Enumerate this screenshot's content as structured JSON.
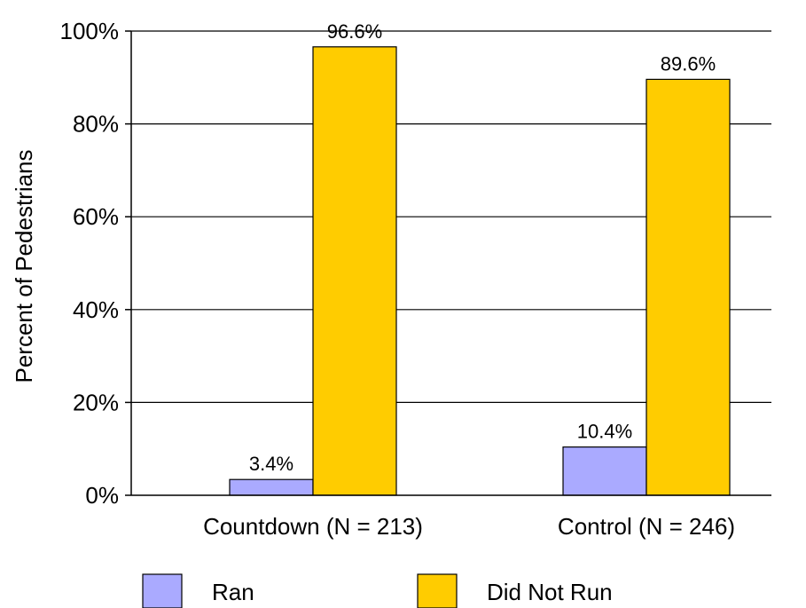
{
  "chart_data": {
    "type": "bar",
    "title": "",
    "xlabel": "",
    "ylabel": "Percent of Pedestrians",
    "categories": [
      "Countdown (N = 213)",
      "Control (N = 246)"
    ],
    "series": [
      {
        "name": "Ran",
        "color": "#aaaaff",
        "values": [
          3.4,
          10.4
        ],
        "data_labels": [
          "3.4%",
          "10.4%"
        ]
      },
      {
        "name": "Did Not Run",
        "color": "#ffcc00",
        "values": [
          96.6,
          89.6
        ],
        "data_labels": [
          "96.6%",
          "89.6%"
        ]
      }
    ],
    "ylim": [
      0,
      100
    ],
    "yticks": [
      0,
      20,
      40,
      60,
      80,
      100
    ],
    "ytick_labels": [
      "0%",
      "20%",
      "40%",
      "60%",
      "80%",
      "100%"
    ],
    "grid": true,
    "legend": "bottom"
  }
}
